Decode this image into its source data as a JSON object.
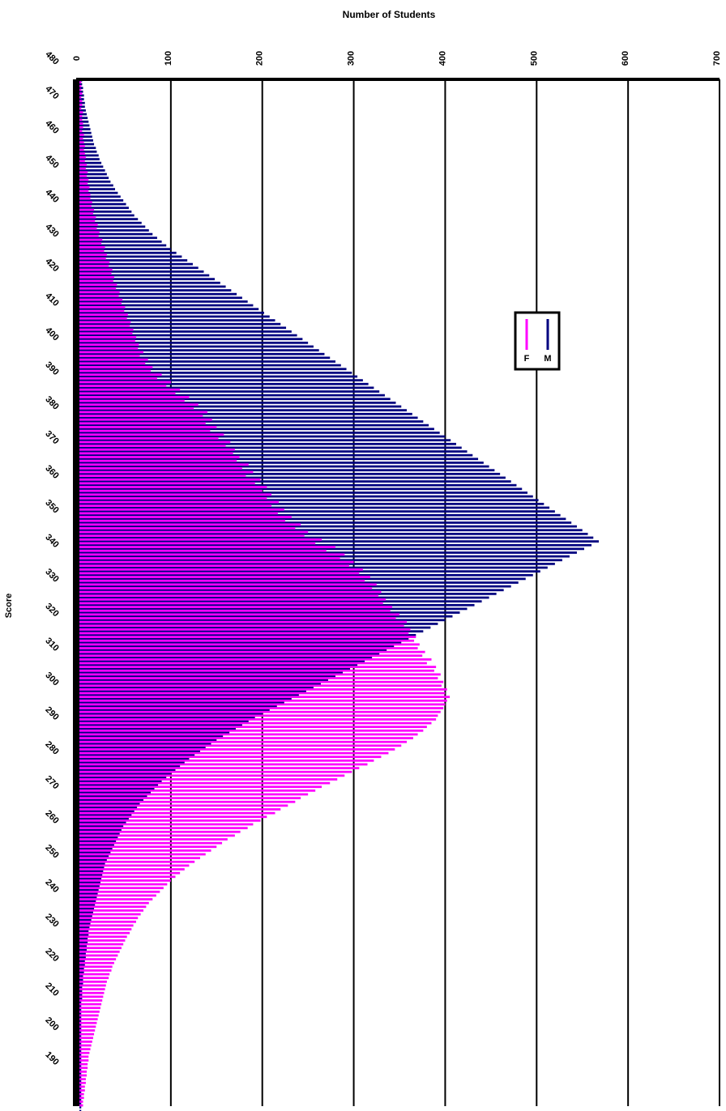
{
  "chart_data": {
    "type": "bar",
    "orientation": "horizontal",
    "title": "Number of Students",
    "xlabel": "Number of Students",
    "ylabel": "Score",
    "xlim": [
      0,
      700
    ],
    "x_ticks": [
      "0",
      "100",
      "200",
      "300",
      "400",
      "500",
      "600",
      "700"
    ],
    "y_ticks": [
      "480",
      "470",
      "460",
      "450",
      "440",
      "430",
      "420",
      "410",
      "400",
      "390",
      "380",
      "370",
      "360",
      "350",
      "340",
      "330",
      "320",
      "310",
      "300",
      "290",
      "280",
      "270",
      "260",
      "250",
      "240",
      "230",
      "220",
      "210",
      "200",
      "190"
    ],
    "ylim": [
      190,
      490
    ],
    "grid": true,
    "legend": {
      "placement": "right",
      "entries": [
        "F",
        "M"
      ]
    },
    "colors": {
      "F": "#ff00ff",
      "M": "#000080",
      "axis": "#000000"
    },
    "series": [
      {
        "name": "F",
        "values": [
          2,
          2,
          2,
          3,
          2,
          3,
          3,
          2,
          4,
          3,
          3,
          4,
          4,
          3,
          5,
          4,
          5,
          6,
          5,
          6,
          7,
          6,
          8,
          7,
          9,
          8,
          10,
          9,
          11,
          10,
          12,
          12,
          14,
          13,
          16,
          15,
          18,
          17,
          20,
          19,
          22,
          21,
          25,
          24,
          28,
          27,
          30,
          29,
          33,
          32,
          36,
          35,
          38,
          37,
          41,
          40,
          44,
          43,
          47,
          46,
          50,
          49,
          53,
          52,
          56,
          55,
          59,
          58,
          62,
          61,
          65,
          64,
          70,
          66,
          75,
          72,
          80,
          78,
          90,
          85,
          100,
          95,
          110,
          105,
          120,
          115,
          130,
          125,
          140,
          135,
          145,
          138,
          150,
          143,
          158,
          152,
          165,
          160,
          170,
          168,
          175,
          172,
          185,
          178,
          190,
          182,
          198,
          192,
          205,
          200,
          210,
          205,
          218,
          210,
          224,
          217,
          232,
          225,
          242,
          236,
          250,
          246,
          265,
          258,
          280,
          270,
          290,
          285,
          300,
          295,
          310,
          306,
          318,
          312,
          325,
          320,
          330,
          327,
          335,
          332,
          342,
          340,
          350,
          346,
          358,
          355,
          362,
          360,
          368,
          366,
          372,
          370,
          378,
          375,
          385,
          380,
          390,
          388,
          395,
          392,
          398,
          396,
          402,
          400,
          405,
          402,
          400,
          398,
          395,
          392,
          390,
          385,
          380,
          376,
          370,
          365,
          358,
          352,
          345,
          338,
          330,
          322,
          315,
          306,
          298,
          290,
          282,
          274,
          265,
          258,
          250,
          242,
          236,
          228,
          220,
          214,
          205,
          198,
          190,
          184,
          176,
          170,
          162,
          156,
          150,
          144,
          138,
          132,
          126,
          120,
          115,
          110,
          105,
          100,
          96,
          92,
          88,
          84,
          80,
          76,
          73,
          70,
          67,
          64,
          62,
          59,
          57,
          55,
          52,
          50,
          48,
          46,
          44,
          42,
          40,
          38,
          36,
          35,
          33,
          32,
          30,
          29,
          28,
          27,
          26,
          25,
          24,
          23,
          22,
          21,
          20,
          19,
          18,
          17,
          16,
          15,
          14,
          13,
          12,
          11,
          10,
          10,
          9,
          9,
          8,
          8,
          7,
          7,
          6,
          6,
          5,
          5,
          4,
          4
        ]
      },
      {
        "name": "M",
        "values": [
          3,
          3,
          4,
          4,
          5,
          5,
          6,
          6,
          7,
          8,
          9,
          10,
          11,
          12,
          13,
          14,
          15,
          16,
          18,
          19,
          21,
          22,
          24,
          26,
          28,
          30,
          32,
          34,
          37,
          39,
          42,
          45,
          48,
          51,
          54,
          57,
          60,
          64,
          68,
          72,
          76,
          80,
          85,
          90,
          95,
          100,
          106,
          112,
          118,
          124,
          130,
          136,
          142,
          148,
          154,
          160,
          166,
          172,
          178,
          184,
          190,
          196,
          202,
          208,
          214,
          220,
          226,
          232,
          238,
          244,
          250,
          256,
          262,
          268,
          274,
          280,
          286,
          292,
          298,
          304,
          310,
          316,
          322,
          328,
          334,
          340,
          346,
          352,
          358,
          364,
          370,
          376,
          382,
          388,
          394,
          400,
          406,
          412,
          418,
          424,
          430,
          436,
          442,
          448,
          454,
          460,
          466,
          472,
          478,
          484,
          490,
          496,
          502,
          508,
          514,
          520,
          526,
          532,
          538,
          544,
          550,
          556,
          562,
          568,
          560,
          552,
          544,
          536,
          528,
          520,
          512,
          504,
          496,
          488,
          480,
          472,
          464,
          456,
          448,
          440,
          432,
          424,
          416,
          408,
          400,
          392,
          384,
          376,
          368,
          360,
          352,
          344,
          336,
          328,
          320,
          312,
          304,
          296,
          288,
          280,
          272,
          264,
          256,
          248,
          240,
          232,
          224,
          216,
          208,
          200,
          192,
          185,
          178,
          171,
          164,
          157,
          150,
          144,
          138,
          132,
          126,
          120,
          115,
          110,
          105,
          100,
          95,
          90,
          86,
          82,
          78,
          74,
          70,
          66,
          63,
          60,
          57,
          54,
          51,
          48,
          46,
          44,
          42,
          40,
          38,
          36,
          34,
          32,
          30,
          28,
          27,
          26,
          25,
          24,
          23,
          22,
          21,
          20,
          19,
          18,
          17,
          16,
          15,
          14,
          13,
          12,
          11,
          10,
          10,
          9,
          9,
          8,
          8,
          7,
          7,
          6,
          6,
          5,
          5,
          4,
          4,
          4,
          3,
          3,
          3,
          3,
          2,
          2,
          2,
          2,
          2,
          2,
          2,
          2,
          2,
          2,
          2,
          2,
          2,
          2,
          2,
          2,
          2,
          2,
          2,
          2,
          2,
          2,
          2,
          2,
          2,
          2,
          2,
          2,
          2,
          2,
          2,
          2,
          2,
          2,
          2,
          2,
          2
        ]
      }
    ]
  }
}
